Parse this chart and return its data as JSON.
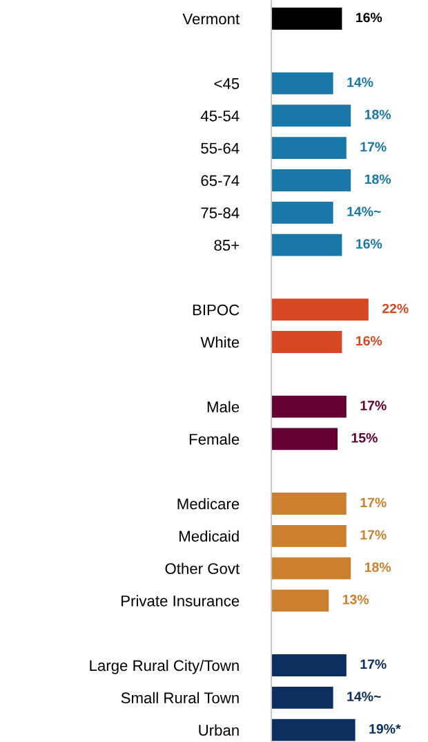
{
  "chart_data": {
    "type": "bar",
    "orientation": "horizontal",
    "categories": [
      "Vermont",
      null,
      "<45",
      "45-54",
      "55-64",
      "65-74",
      "75-84",
      "85+",
      null,
      "BIPOC",
      "White",
      null,
      "Male",
      "Female",
      null,
      "Medicare",
      "Medicaid",
      "Other Govt",
      "Private Insurance",
      null,
      "Large Rural City/Town",
      "Small Rural Town",
      "Urban"
    ],
    "values": [
      16,
      null,
      14,
      18,
      17,
      18,
      14,
      16,
      null,
      22,
      16,
      null,
      17,
      15,
      null,
      17,
      17,
      18,
      13,
      null,
      17,
      14,
      19
    ],
    "value_labels": [
      "16%",
      null,
      "14%",
      "18%",
      "17%",
      "18%",
      "14%~",
      "16%",
      null,
      "22%",
      "16%",
      null,
      "17%",
      "15%",
      null,
      "17%",
      "17%",
      "18%",
      "13%",
      null,
      "17%",
      "14%~",
      "19%*"
    ],
    "colors": [
      "#000000",
      null,
      "#1a78a8",
      "#1a78a8",
      "#1a78a8",
      "#1a78a8",
      "#1a78a8",
      "#1a78a8",
      null,
      "#d64822",
      "#d64822",
      null,
      "#630031",
      "#630031",
      null,
      "#cc7f2c",
      "#cc7f2c",
      "#cc7f2c",
      "#cc7f2c",
      null,
      "#0c2f5f",
      "#0c2f5f",
      "#0c2f5f"
    ],
    "grid": false,
    "legend": false
  }
}
